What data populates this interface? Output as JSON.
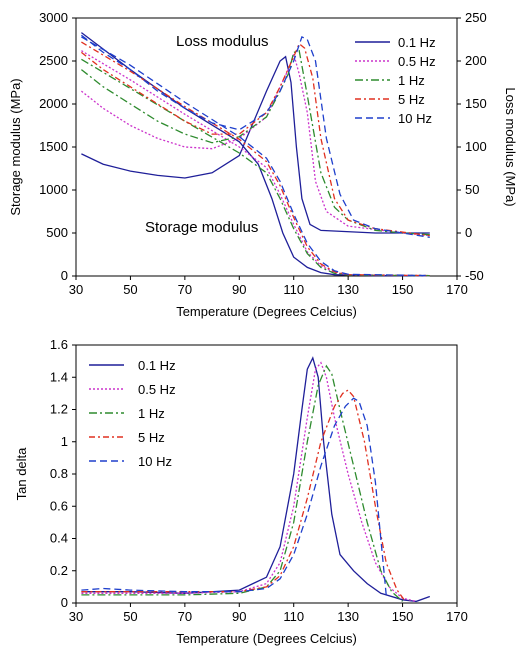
{
  "chart_data": [
    {
      "type": "line",
      "xlabel": "Temperature (Degrees Celcius)",
      "ylabel_left": "Storage modulus (MPa)",
      "ylabel_right": "Loss modulus (MPa)",
      "xlim": [
        30,
        170
      ],
      "ylim_left": [
        0,
        3000
      ],
      "ylim_right": [
        -50,
        250
      ],
      "x_ticks": [
        "30",
        "50",
        "70",
        "90",
        "110",
        "130",
        "150",
        "170"
      ],
      "y_left_ticks": [
        "0",
        "500",
        "1000",
        "1500",
        "2000",
        "2500",
        "3000"
      ],
      "y_right_ticks": [
        "-50",
        "0",
        "50",
        "100",
        "150",
        "200",
        "250"
      ],
      "annotations": [
        "Loss modulus",
        "Storage modulus"
      ],
      "legend_position": "top-right",
      "series": [
        {
          "name": "0.1 Hz",
          "color": "#1f1f99",
          "dash": "solid",
          "storage": [
            [
              32,
              2830
            ],
            [
              50,
              2400
            ],
            [
              70,
              1950
            ],
            [
              90,
              1560
            ],
            [
              97,
              1300
            ],
            [
              102,
              900
            ],
            [
              106,
              500
            ],
            [
              110,
              220
            ],
            [
              115,
              100
            ],
            [
              120,
              40
            ],
            [
              125,
              15
            ],
            [
              140,
              5
            ],
            [
              160,
              2
            ]
          ],
          "loss": [
            [
              32,
              92
            ],
            [
              40,
              80
            ],
            [
              50,
              72
            ],
            [
              60,
              67
            ],
            [
              70,
              64
            ],
            [
              80,
              70
            ],
            [
              90,
              90
            ],
            [
              100,
              165
            ],
            [
              105,
              200
            ],
            [
              107,
              205
            ],
            [
              109,
              175
            ],
            [
              111,
              100
            ],
            [
              113,
              40
            ],
            [
              116,
              10
            ],
            [
              120,
              3
            ],
            [
              140,
              0
            ],
            [
              160,
              0
            ]
          ]
        },
        {
          "name": "0.5 Hz",
          "color": "#cc33cc",
          "dash": "2,2",
          "storage": [
            [
              32,
              2620
            ],
            [
              50,
              2280
            ],
            [
              70,
              1880
            ],
            [
              90,
              1500
            ],
            [
              100,
              1260
            ],
            [
              105,
              950
            ],
            [
              110,
              600
            ],
            [
              115,
              280
            ],
            [
              120,
              120
            ],
            [
              125,
              40
            ],
            [
              130,
              15
            ],
            [
              160,
              5
            ]
          ],
          "loss": [
            [
              32,
              165
            ],
            [
              40,
              145
            ],
            [
              50,
              125
            ],
            [
              60,
              110
            ],
            [
              70,
              100
            ],
            [
              80,
              98
            ],
            [
              90,
              110
            ],
            [
              100,
              135
            ],
            [
              105,
              170
            ],
            [
              108,
              190
            ],
            [
              110,
              208
            ],
            [
              112,
              185
            ],
            [
              115,
              140
            ],
            [
              118,
              60
            ],
            [
              122,
              25
            ],
            [
              130,
              8
            ],
            [
              150,
              0
            ],
            [
              160,
              -3
            ]
          ]
        },
        {
          "name": "1 Hz",
          "color": "#2e8b2e",
          "dash": "8,3,2,3",
          "storage": [
            [
              32,
              2520
            ],
            [
              50,
              2180
            ],
            [
              70,
              1800
            ],
            [
              90,
              1430
            ],
            [
              100,
              1200
            ],
            [
              105,
              900
            ],
            [
              110,
              550
            ],
            [
              115,
              260
            ],
            [
              120,
              100
            ],
            [
              125,
              30
            ],
            [
              130,
              10
            ],
            [
              160,
              5
            ]
          ],
          "loss": [
            [
              32,
              190
            ],
            [
              40,
              170
            ],
            [
              50,
              150
            ],
            [
              60,
              130
            ],
            [
              70,
              115
            ],
            [
              80,
              105
            ],
            [
              90,
              112
            ],
            [
              100,
              135
            ],
            [
              105,
              165
            ],
            [
              108,
              185
            ],
            [
              110,
              210
            ],
            [
              112,
              212
            ],
            [
              115,
              160
            ],
            [
              120,
              70
            ],
            [
              125,
              30
            ],
            [
              130,
              15
            ],
            [
              140,
              3
            ],
            [
              150,
              0
            ],
            [
              160,
              -2
            ]
          ]
        },
        {
          "name": "5 Hz",
          "color": "#e03020",
          "dash": "6,3,2,3",
          "storage": [
            [
              32,
              2720
            ],
            [
              50,
              2380
            ],
            [
              70,
              1970
            ],
            [
              90,
              1590
            ],
            [
              100,
              1330
            ],
            [
              105,
              1050
            ],
            [
              110,
              680
            ],
            [
              115,
              340
            ],
            [
              120,
              140
            ],
            [
              125,
              50
            ],
            [
              130,
              15
            ],
            [
              160,
              5
            ]
          ],
          "loss": [
            [
              32,
              210
            ],
            [
              40,
              190
            ],
            [
              50,
              170
            ],
            [
              60,
              150
            ],
            [
              70,
              130
            ],
            [
              80,
              115
            ],
            [
              90,
              115
            ],
            [
              100,
              140
            ],
            [
              105,
              170
            ],
            [
              110,
              205
            ],
            [
              112,
              220
            ],
            [
              114,
              215
            ],
            [
              117,
              180
            ],
            [
              120,
              110
            ],
            [
              125,
              40
            ],
            [
              130,
              15
            ],
            [
              140,
              5
            ],
            [
              160,
              -3
            ]
          ]
        },
        {
          "name": "10 Hz",
          "color": "#1e3fcc",
          "dash": "7,4",
          "storage": [
            [
              32,
              2780
            ],
            [
              50,
              2450
            ],
            [
              70,
              2020
            ],
            [
              90,
              1620
            ],
            [
              100,
              1370
            ],
            [
              105,
              1100
            ],
            [
              110,
              720
            ],
            [
              115,
              380
            ],
            [
              120,
              170
            ],
            [
              125,
              60
            ],
            [
              130,
              20
            ],
            [
              160,
              5
            ]
          ],
          "loss": [
            [
              32,
              230
            ],
            [
              40,
              210
            ],
            [
              50,
              190
            ],
            [
              60,
              165
            ],
            [
              70,
              145
            ],
            [
              80,
              128
            ],
            [
              90,
              120
            ],
            [
              100,
              140
            ],
            [
              105,
              165
            ],
            [
              110,
              200
            ],
            [
              113,
              228
            ],
            [
              115,
              225
            ],
            [
              118,
              200
            ],
            [
              122,
              110
            ],
            [
              127,
              45
            ],
            [
              132,
              15
            ],
            [
              140,
              5
            ],
            [
              160,
              -5
            ]
          ]
        }
      ]
    },
    {
      "type": "line",
      "xlabel": "Temperature (Degrees Celcius)",
      "ylabel": "Tan delta",
      "xlim": [
        30,
        170
      ],
      "ylim": [
        0,
        1.6
      ],
      "x_ticks": [
        "30",
        "50",
        "70",
        "90",
        "110",
        "130",
        "150",
        "170"
      ],
      "y_ticks": [
        "0",
        "0.2",
        "0.4",
        "0.6",
        "0.8",
        "1",
        "1.2",
        "1.4",
        "1.6"
      ],
      "legend_position": "top-left",
      "series": [
        {
          "name": "0.1 Hz",
          "color": "#1f1f99",
          "dash": "solid",
          "values": [
            [
              32,
              0.07
            ],
            [
              50,
              0.07
            ],
            [
              70,
              0.06
            ],
            [
              90,
              0.08
            ],
            [
              100,
              0.16
            ],
            [
              105,
              0.35
            ],
            [
              110,
              0.8
            ],
            [
              113,
              1.2
            ],
            [
              115,
              1.45
            ],
            [
              117,
              1.52
            ],
            [
              119,
              1.4
            ],
            [
              121,
              1.0
            ],
            [
              124,
              0.55
            ],
            [
              127,
              0.3
            ],
            [
              132,
              0.2
            ],
            [
              137,
              0.12
            ],
            [
              142,
              0.06
            ],
            [
              150,
              0.02
            ],
            [
              155,
              0.01
            ],
            [
              160,
              0.04
            ]
          ]
        },
        {
          "name": "0.5 Hz",
          "color": "#cc33cc",
          "dash": "2,2",
          "values": [
            [
              32,
              0.06
            ],
            [
              50,
              0.06
            ],
            [
              70,
              0.06
            ],
            [
              90,
              0.07
            ],
            [
              100,
              0.12
            ],
            [
              105,
              0.25
            ],
            [
              110,
              0.6
            ],
            [
              115,
              1.15
            ],
            [
              118,
              1.45
            ],
            [
              120,
              1.49
            ],
            [
              122,
              1.4
            ],
            [
              125,
              1.15
            ],
            [
              130,
              0.8
            ],
            [
              135,
              0.5
            ],
            [
              140,
              0.25
            ],
            [
              145,
              0.1
            ],
            [
              150,
              0.03
            ],
            [
              155,
              0.01
            ]
          ]
        },
        {
          "name": "1 Hz",
          "color": "#2e8b2e",
          "dash": "8,3,2,3",
          "values": [
            [
              32,
              0.05
            ],
            [
              50,
              0.05
            ],
            [
              70,
              0.05
            ],
            [
              90,
              0.06
            ],
            [
              100,
              0.1
            ],
            [
              105,
              0.2
            ],
            [
              110,
              0.5
            ],
            [
              115,
              1.0
            ],
            [
              119,
              1.35
            ],
            [
              122,
              1.47
            ],
            [
              124,
              1.42
            ],
            [
              127,
              1.2
            ],
            [
              132,
              0.85
            ],
            [
              137,
              0.5
            ],
            [
              142,
              0.2
            ],
            [
              146,
              0.07
            ],
            [
              150,
              0.01
            ]
          ]
        },
        {
          "name": "5 Hz",
          "color": "#e03020",
          "dash": "6,3,2,3",
          "values": [
            [
              32,
              0.07
            ],
            [
              50,
              0.07
            ],
            [
              70,
              0.07
            ],
            [
              90,
              0.07
            ],
            [
              100,
              0.1
            ],
            [
              105,
              0.17
            ],
            [
              110,
              0.35
            ],
            [
              115,
              0.65
            ],
            [
              120,
              1.0
            ],
            [
              125,
              1.22
            ],
            [
              128,
              1.3
            ],
            [
              130,
              1.32
            ],
            [
              132,
              1.28
            ],
            [
              136,
              1.0
            ],
            [
              140,
              0.6
            ],
            [
              144,
              0.25
            ],
            [
              148,
              0.08
            ],
            [
              151,
              0.01
            ]
          ]
        },
        {
          "name": "10 Hz",
          "color": "#1e3fcc",
          "dash": "7,4",
          "values": [
            [
              32,
              0.08
            ],
            [
              40,
              0.09
            ],
            [
              50,
              0.08
            ],
            [
              70,
              0.07
            ],
            [
              90,
              0.07
            ],
            [
              100,
              0.09
            ],
            [
              105,
              0.15
            ],
            [
              110,
              0.3
            ],
            [
              115,
              0.55
            ],
            [
              120,
              0.85
            ],
            [
              125,
              1.1
            ],
            [
              129,
              1.22
            ],
            [
              132,
              1.27
            ],
            [
              134,
              1.25
            ],
            [
              137,
              1.1
            ],
            [
              140,
              0.75
            ],
            [
              142,
              0.4
            ],
            [
              144,
              0.05
            ]
          ]
        }
      ]
    }
  ]
}
